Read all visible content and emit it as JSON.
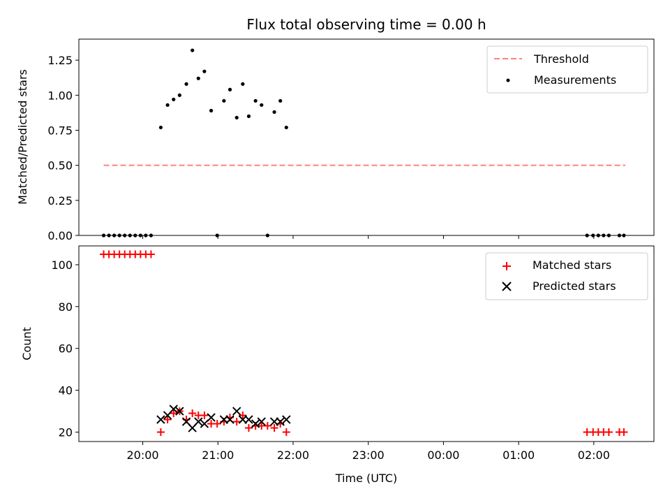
{
  "chart_data": {
    "title": "Flux total observing time = 0.00 h",
    "xlabel": "Time (UTC)",
    "x_ticks": [
      {
        "hour": 0.0,
        "label": "20:00"
      },
      {
        "hour": 1.0,
        "label": "21:00"
      },
      {
        "hour": 2.0,
        "label": "22:00"
      },
      {
        "hour": 3.0,
        "label": "23:00"
      },
      {
        "hour": 4.0,
        "label": "00:00"
      },
      {
        "hour": 5.0,
        "label": "01:00"
      },
      {
        "hour": 6.0,
        "label": "02:00"
      }
    ],
    "xlim": [
      -0.85,
      6.8
    ],
    "panels": [
      {
        "type": "scatter",
        "ylabel": "Matched/Predicted stars",
        "ylim": [
          0,
          1.4
        ],
        "y_ticks": [
          0.0,
          0.25,
          0.5,
          0.75,
          1.0,
          1.25
        ],
        "y_tick_labels": [
          "0.00",
          "0.25",
          "0.50",
          "0.75",
          "1.00",
          "1.25"
        ],
        "legend": {
          "position": "upper right",
          "entries": [
            "Threshold",
            "Measurements"
          ]
        },
        "threshold": {
          "name": "Threshold",
          "value": 0.5,
          "x_range": [
            -0.52,
            6.42
          ],
          "color": "#ff8080",
          "style": "dashed"
        },
        "measurements": {
          "name": "Measurements",
          "color": "#000000",
          "points": [
            [
              -0.52,
              0.0
            ],
            [
              -0.45,
              0.0
            ],
            [
              -0.38,
              0.0
            ],
            [
              -0.31,
              0.0
            ],
            [
              -0.24,
              0.0
            ],
            [
              -0.17,
              0.0
            ],
            [
              -0.1,
              0.0
            ],
            [
              -0.03,
              0.0
            ],
            [
              0.04,
              0.0
            ],
            [
              0.11,
              0.0
            ],
            [
              0.24,
              0.77
            ],
            [
              0.33,
              0.93
            ],
            [
              0.41,
              0.97
            ],
            [
              0.49,
              1.0
            ],
            [
              0.58,
              1.08
            ],
            [
              0.66,
              1.32
            ],
            [
              0.74,
              1.12
            ],
            [
              0.82,
              1.17
            ],
            [
              0.91,
              0.89
            ],
            [
              0.99,
              0.0
            ],
            [
              1.08,
              0.96
            ],
            [
              1.16,
              1.04
            ],
            [
              1.25,
              0.84
            ],
            [
              1.33,
              1.08
            ],
            [
              1.41,
              0.85
            ],
            [
              1.5,
              0.96
            ],
            [
              1.58,
              0.93
            ],
            [
              1.66,
              0.0
            ],
            [
              1.75,
              0.88
            ],
            [
              1.83,
              0.96
            ],
            [
              1.91,
              0.77
            ],
            [
              5.91,
              0.0
            ],
            [
              5.99,
              0.0
            ],
            [
              6.06,
              0.0
            ],
            [
              6.13,
              0.0
            ],
            [
              6.2,
              0.0
            ],
            [
              6.34,
              0.0
            ],
            [
              6.4,
              0.0
            ]
          ]
        }
      },
      {
        "type": "scatter",
        "ylabel": "Count",
        "ylim": [
          15.5,
          109
        ],
        "y_ticks": [
          20,
          40,
          60,
          80,
          100
        ],
        "y_tick_labels": [
          "20",
          "40",
          "60",
          "80",
          "100"
        ],
        "legend": {
          "position": "upper right",
          "entries": [
            "Matched stars",
            "Predicted stars"
          ]
        },
        "matched": {
          "name": "Matched stars",
          "color": "#ff0000",
          "marker": "+",
          "points": [
            [
              -0.52,
              105
            ],
            [
              -0.45,
              105
            ],
            [
              -0.38,
              105
            ],
            [
              -0.31,
              105
            ],
            [
              -0.24,
              105
            ],
            [
              -0.17,
              105
            ],
            [
              -0.1,
              105
            ],
            [
              -0.03,
              105
            ],
            [
              0.04,
              105
            ],
            [
              0.11,
              105
            ],
            [
              0.24,
              20
            ],
            [
              0.33,
              26
            ],
            [
              0.41,
              29
            ],
            [
              0.49,
              30
            ],
            [
              0.58,
              26
            ],
            [
              0.66,
              29
            ],
            [
              0.74,
              28
            ],
            [
              0.82,
              28
            ],
            [
              0.91,
              24
            ],
            [
              0.99,
              24
            ],
            [
              1.08,
              25
            ],
            [
              1.16,
              27
            ],
            [
              1.25,
              25
            ],
            [
              1.33,
              28
            ],
            [
              1.41,
              22
            ],
            [
              1.5,
              23
            ],
            [
              1.58,
              23
            ],
            [
              1.66,
              23
            ],
            [
              1.75,
              22
            ],
            [
              1.83,
              24
            ],
            [
              1.91,
              20
            ],
            [
              5.91,
              20
            ],
            [
              5.99,
              20
            ],
            [
              6.06,
              20
            ],
            [
              6.13,
              20
            ],
            [
              6.2,
              20
            ],
            [
              6.34,
              20
            ],
            [
              6.4,
              20
            ]
          ]
        },
        "predicted": {
          "name": "Predicted stars",
          "color": "#000000",
          "marker": "x",
          "points": [
            [
              0.24,
              26
            ],
            [
              0.33,
              28
            ],
            [
              0.41,
              31
            ],
            [
              0.49,
              30
            ],
            [
              0.58,
              25
            ],
            [
              0.66,
              22
            ],
            [
              0.74,
              25
            ],
            [
              0.82,
              24
            ],
            [
              0.91,
              27
            ],
            [
              1.08,
              26
            ],
            [
              1.16,
              26
            ],
            [
              1.25,
              30
            ],
            [
              1.33,
              26
            ],
            [
              1.41,
              26
            ],
            [
              1.5,
              24
            ],
            [
              1.58,
              25
            ],
            [
              1.75,
              25
            ],
            [
              1.83,
              25
            ],
            [
              1.91,
              26
            ]
          ]
        }
      }
    ]
  }
}
